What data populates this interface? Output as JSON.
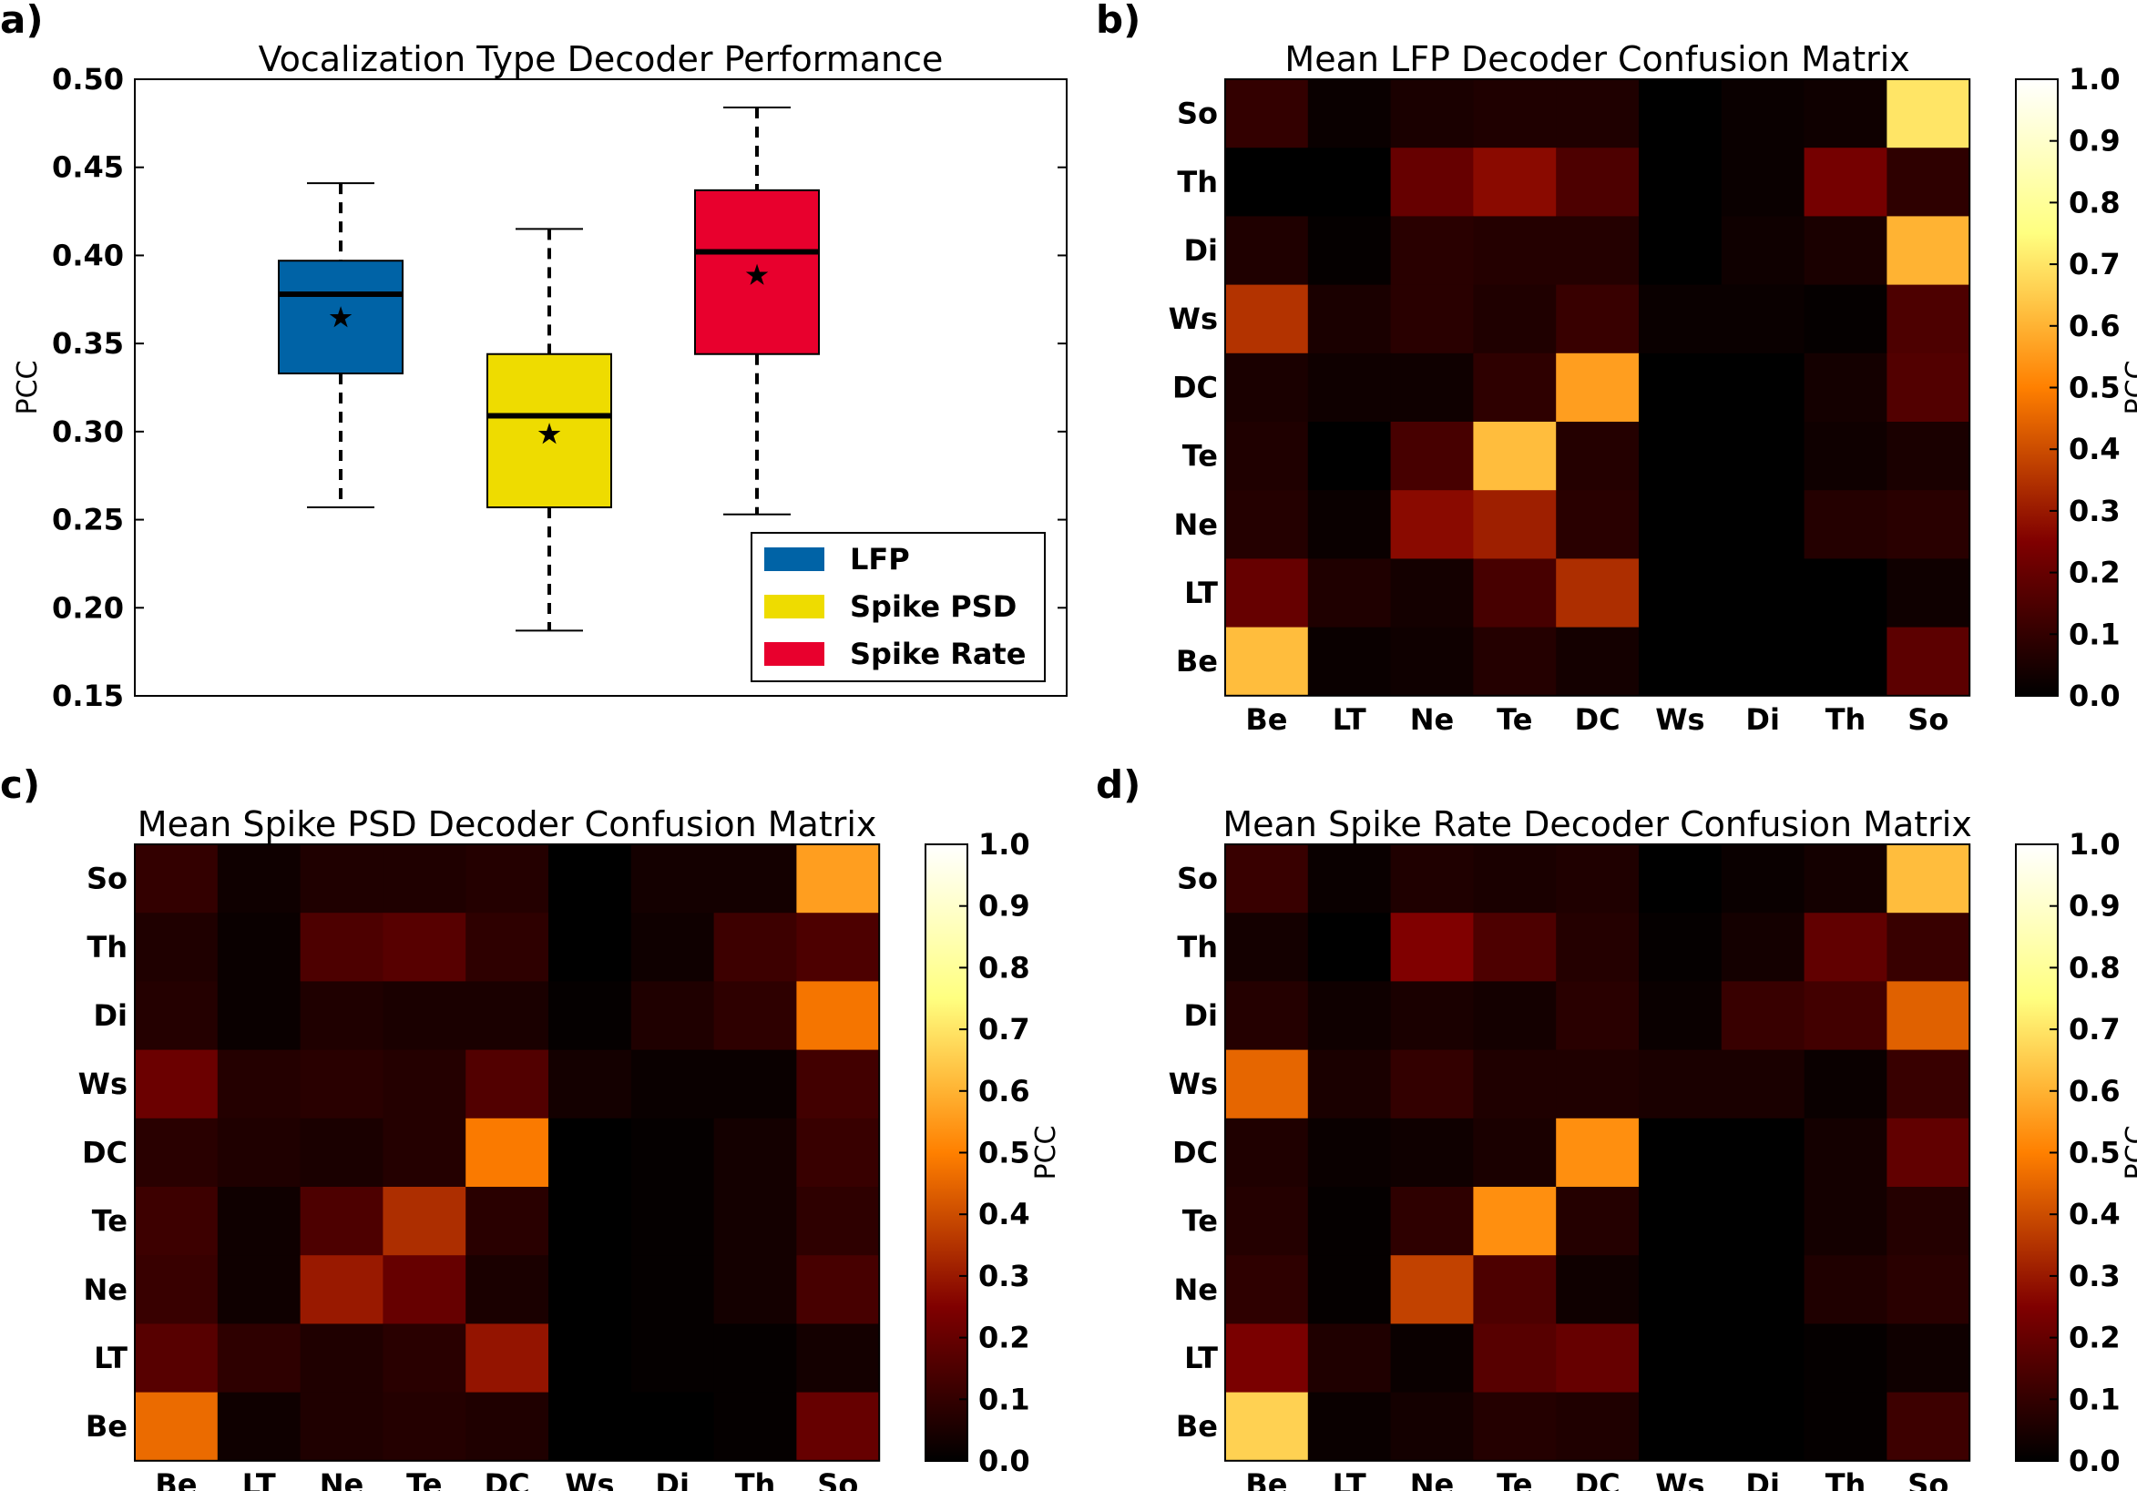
{
  "chart_data": [
    {
      "panel": "a)",
      "type": "box",
      "title": "Vocalization Type Decoder Performance",
      "ylabel": "PCC",
      "ylim": [
        0.15,
        0.5
      ],
      "yticks": [
        "0.15",
        "0.20",
        "0.25",
        "0.30",
        "0.35",
        "0.40",
        "0.45",
        "0.50"
      ],
      "legend_position": "lower-right",
      "series": [
        {
          "name": "LFP",
          "color": "#0063a6",
          "whisker_low": 0.257,
          "q1": 0.333,
          "median": 0.378,
          "q3": 0.397,
          "whisker_high": 0.441,
          "mean": 0.365
        },
        {
          "name": "Spike PSD",
          "color": "#eedc00",
          "whisker_low": 0.187,
          "q1": 0.257,
          "median": 0.309,
          "q3": 0.344,
          "whisker_high": 0.415,
          "mean": 0.299
        },
        {
          "name": "Spike Rate",
          "color": "#e8002d",
          "whisker_low": 0.253,
          "q1": 0.344,
          "median": 0.402,
          "q3": 0.437,
          "whisker_high": 0.484,
          "mean": 0.389
        }
      ]
    },
    {
      "panel": "b)",
      "type": "heatmap",
      "title": "Mean LFP Decoder Confusion Matrix",
      "x_categories": [
        "Be",
        "LT",
        "Ne",
        "Te",
        "DC",
        "Ws",
        "Di",
        "Th",
        "So"
      ],
      "y_categories": [
        "So",
        "Th",
        "Di",
        "Ws",
        "DC",
        "Te",
        "Ne",
        "LT",
        "Be"
      ],
      "colorbar_label": "PCC",
      "colorbar_range": [
        0.0,
        1.0
      ],
      "colorbar_ticks": [
        "0.0",
        "0.1",
        "0.2",
        "0.3",
        "0.4",
        "0.5",
        "0.6",
        "0.7",
        "0.8",
        "0.9",
        "1.0"
      ],
      "values": [
        [
          0.1,
          0.02,
          0.05,
          0.06,
          0.06,
          0.0,
          0.02,
          0.03,
          0.7
        ],
        [
          0.0,
          0.0,
          0.2,
          0.27,
          0.15,
          0.0,
          0.02,
          0.23,
          0.09
        ],
        [
          0.06,
          0.01,
          0.08,
          0.07,
          0.07,
          0.0,
          0.03,
          0.05,
          0.6
        ],
        [
          0.35,
          0.05,
          0.08,
          0.06,
          0.11,
          0.02,
          0.02,
          0.01,
          0.15
        ],
        [
          0.05,
          0.03,
          0.03,
          0.09,
          0.56,
          0.0,
          0.0,
          0.04,
          0.16
        ],
        [
          0.06,
          0.0,
          0.14,
          0.62,
          0.07,
          0.0,
          0.0,
          0.03,
          0.05
        ],
        [
          0.07,
          0.02,
          0.27,
          0.31,
          0.08,
          0.0,
          0.0,
          0.07,
          0.08
        ],
        [
          0.2,
          0.06,
          0.04,
          0.14,
          0.34,
          0.0,
          0.0,
          0.0,
          0.03
        ],
        [
          0.62,
          0.02,
          0.03,
          0.07,
          0.04,
          0.0,
          0.0,
          0.0,
          0.18
        ]
      ]
    },
    {
      "panel": "c)",
      "type": "heatmap",
      "title": "Mean Spike PSD Decoder Confusion Matrix",
      "x_categories": [
        "Be",
        "LT",
        "Ne",
        "Te",
        "DC",
        "Ws",
        "Di",
        "Th",
        "So"
      ],
      "y_categories": [
        "So",
        "Th",
        "Di",
        "Ws",
        "DC",
        "Te",
        "Ne",
        "LT",
        "Be"
      ],
      "colorbar_label": "PCC",
      "colorbar_range": [
        0.0,
        1.0
      ],
      "colorbar_ticks": [
        "0.0",
        "0.1",
        "0.2",
        "0.3",
        "0.4",
        "0.5",
        "0.6",
        "0.7",
        "0.8",
        "0.9",
        "1.0"
      ],
      "values": [
        [
          0.1,
          0.03,
          0.06,
          0.06,
          0.07,
          0.0,
          0.04,
          0.04,
          0.56
        ],
        [
          0.06,
          0.02,
          0.15,
          0.17,
          0.09,
          0.0,
          0.03,
          0.12,
          0.15
        ],
        [
          0.07,
          0.02,
          0.06,
          0.05,
          0.05,
          0.01,
          0.06,
          0.09,
          0.48
        ],
        [
          0.21,
          0.07,
          0.08,
          0.07,
          0.16,
          0.04,
          0.02,
          0.02,
          0.13
        ],
        [
          0.08,
          0.06,
          0.05,
          0.07,
          0.49,
          0.0,
          0.01,
          0.04,
          0.11
        ],
        [
          0.12,
          0.03,
          0.15,
          0.34,
          0.08,
          0.0,
          0.01,
          0.04,
          0.09
        ],
        [
          0.11,
          0.03,
          0.3,
          0.2,
          0.05,
          0.0,
          0.01,
          0.04,
          0.14
        ],
        [
          0.17,
          0.09,
          0.06,
          0.08,
          0.29,
          0.0,
          0.01,
          0.01,
          0.04
        ],
        [
          0.46,
          0.03,
          0.06,
          0.07,
          0.06,
          0.0,
          0.0,
          0.01,
          0.2
        ]
      ]
    },
    {
      "panel": "d)",
      "type": "heatmap",
      "title": "Mean Spike Rate Decoder Confusion Matrix",
      "x_categories": [
        "Be",
        "LT",
        "Ne",
        "Te",
        "DC",
        "Ws",
        "Di",
        "Th",
        "So"
      ],
      "y_categories": [
        "So",
        "Th",
        "Di",
        "Ws",
        "DC",
        "Te",
        "Ne",
        "LT",
        "Be"
      ],
      "colorbar_label": "PCC",
      "colorbar_range": [
        0.0,
        1.0
      ],
      "colorbar_ticks": [
        "0.0",
        "0.1",
        "0.2",
        "0.3",
        "0.4",
        "0.5",
        "0.6",
        "0.7",
        "0.8",
        "0.9",
        "1.0"
      ],
      "values": [
        [
          0.11,
          0.02,
          0.06,
          0.05,
          0.06,
          0.0,
          0.02,
          0.04,
          0.62
        ],
        [
          0.04,
          0.0,
          0.25,
          0.15,
          0.07,
          0.01,
          0.04,
          0.19,
          0.11
        ],
        [
          0.07,
          0.03,
          0.05,
          0.04,
          0.08,
          0.02,
          0.11,
          0.13,
          0.44
        ],
        [
          0.45,
          0.05,
          0.1,
          0.06,
          0.06,
          0.05,
          0.05,
          0.02,
          0.11
        ],
        [
          0.06,
          0.02,
          0.03,
          0.05,
          0.53,
          0.0,
          0.0,
          0.04,
          0.19
        ],
        [
          0.07,
          0.01,
          0.09,
          0.53,
          0.07,
          0.0,
          0.0,
          0.04,
          0.07
        ],
        [
          0.09,
          0.01,
          0.38,
          0.15,
          0.03,
          0.0,
          0.0,
          0.06,
          0.08
        ],
        [
          0.24,
          0.06,
          0.02,
          0.17,
          0.2,
          0.0,
          0.0,
          0.01,
          0.03
        ],
        [
          0.66,
          0.02,
          0.04,
          0.07,
          0.06,
          0.0,
          0.0,
          0.01,
          0.12
        ]
      ]
    }
  ]
}
